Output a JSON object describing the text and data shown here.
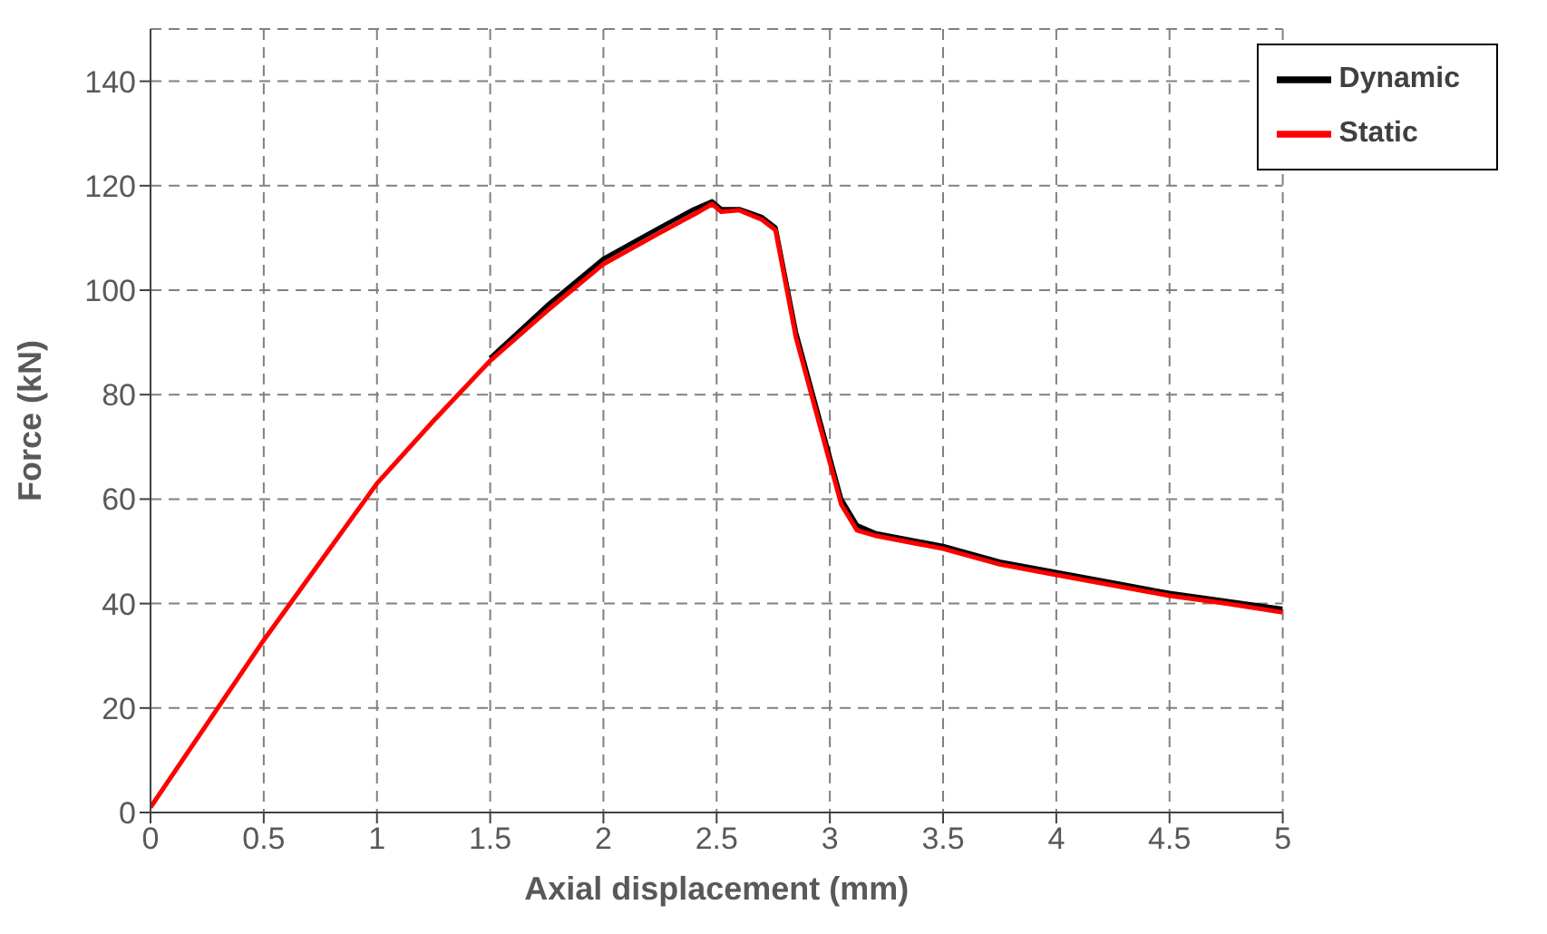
{
  "chart_data": {
    "type": "line",
    "xlabel": "Axial displacement (mm)",
    "ylabel": "Force (kN)",
    "xlim": [
      0,
      5
    ],
    "xticks": [
      0,
      0.5,
      1,
      1.5,
      2,
      2.5,
      3,
      3.5,
      4,
      4.5,
      5
    ],
    "ylim": [
      0,
      150
    ],
    "yticks": [
      0,
      20,
      40,
      60,
      80,
      100,
      120,
      140
    ],
    "grid": true,
    "legend": "top right",
    "marker": "none",
    "line_style": "solid",
    "series": [
      {
        "name": "Dynamic",
        "color": "#000000",
        "x": [
          1.5,
          1.75,
          2,
          2.25,
          2.4,
          2.48,
          2.52,
          2.6,
          2.7,
          2.76,
          2.85,
          2.95,
          3.05,
          3.12,
          3.2,
          3.5,
          3.75,
          4,
          4.25,
          4.5,
          4.75,
          5
        ],
        "values": [
          87,
          97,
          106,
          112,
          115.5,
          117,
          115.5,
          115.5,
          114,
          112,
          92,
          76,
          60,
          55,
          53.5,
          51,
          48,
          46,
          44,
          42,
          40.5,
          39
        ]
      },
      {
        "name": "Static",
        "color": "#ff0000",
        "x": [
          0,
          0.25,
          0.5,
          0.75,
          1,
          1.25,
          1.5,
          1.75,
          2,
          2.25,
          2.4,
          2.48,
          2.52,
          2.6,
          2.7,
          2.76,
          2.85,
          2.95,
          3.05,
          3.12,
          3.2,
          3.5,
          3.75,
          4,
          4.25,
          4.5,
          4.75,
          5
        ],
        "values": [
          1,
          17,
          33,
          48,
          63,
          75,
          86.5,
          96,
          105,
          111,
          114.5,
          116.5,
          115,
          115.3,
          113.5,
          111.5,
          91,
          75,
          59,
          54,
          53,
          50.5,
          47.5,
          45.5,
          43.5,
          41.5,
          40,
          38.3
        ]
      }
    ]
  }
}
